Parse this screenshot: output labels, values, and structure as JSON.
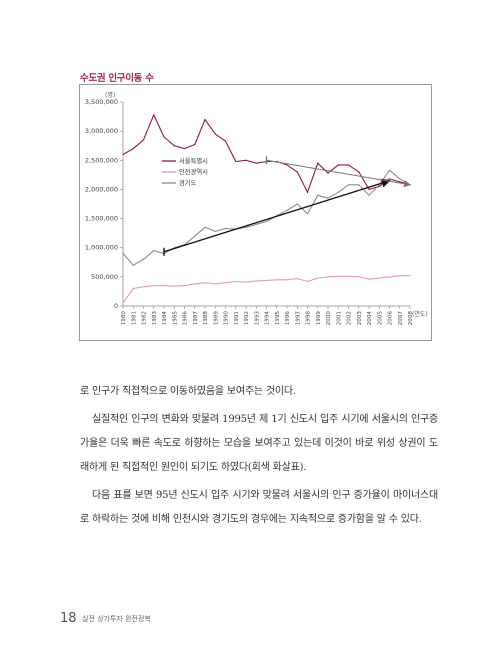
{
  "chart_data": {
    "type": "line",
    "title": "수도권 인구이동 수",
    "y_unit": "(명)",
    "x_unit": "(연도)",
    "ylim": [
      0,
      3500000
    ],
    "yticks": [
      0,
      500000,
      1000000,
      1500000,
      2000000,
      2500000,
      3000000,
      3500000
    ],
    "ytick_labels": [
      "0",
      "500,000",
      "1,000,000",
      "1,500,000",
      "2,000,000",
      "2,500,000",
      "3,000,000",
      "3,500,000"
    ],
    "x": [
      "1980",
      "1981",
      "1982",
      "1983",
      "1984",
      "1985",
      "1986",
      "1987",
      "1988",
      "1989",
      "1990",
      "1991",
      "1992",
      "1993",
      "1994",
      "1995",
      "1996",
      "1997",
      "1998",
      "1999",
      "2000",
      "2001",
      "2002",
      "2003",
      "2004",
      "2005",
      "2006",
      "2007",
      "2008"
    ],
    "series": [
      {
        "name": "서울특별시",
        "color": "#8b1a3c",
        "values": [
          2600000,
          2700000,
          2850000,
          3280000,
          2900000,
          2750000,
          2700000,
          2770000,
          3200000,
          2950000,
          2830000,
          2480000,
          2500000,
          2450000,
          2480000,
          2480000,
          2420000,
          2300000,
          1950000,
          2450000,
          2280000,
          2420000,
          2420000,
          2300000,
          2000000,
          2050000,
          2180000,
          2130000,
          2080000
        ]
      },
      {
        "name": "인천광역시",
        "color": "#e59bb4",
        "values": [
          50000,
          300000,
          330000,
          350000,
          350000,
          340000,
          350000,
          380000,
          400000,
          380000,
          400000,
          420000,
          410000,
          430000,
          440000,
          450000,
          450000,
          470000,
          420000,
          480000,
          500000,
          510000,
          510000,
          500000,
          460000,
          480000,
          500000,
          520000,
          520000
        ]
      },
      {
        "name": "경기도",
        "color": "#8c8c8c",
        "values": [
          900000,
          700000,
          800000,
          950000,
          900000,
          1000000,
          1050000,
          1200000,
          1350000,
          1280000,
          1330000,
          1320000,
          1350000,
          1400000,
          1450000,
          1550000,
          1640000,
          1750000,
          1580000,
          1900000,
          1850000,
          1950000,
          2080000,
          2080000,
          1900000,
          2080000,
          2330000,
          2180000,
          2080000
        ]
      }
    ],
    "arrows": [
      {
        "from": {
          "x": "1984",
          "y": 930000
        },
        "to": {
          "x": "2006",
          "y": 2150000
        }
      },
      {
        "from": {
          "x": "1994",
          "y": 2500000
        },
        "to": {
          "x": "2008",
          "y": 2080000
        }
      }
    ]
  },
  "body": {
    "p1": "로 인구가 직접적으로 이동하였음을 보여주는 것이다.",
    "p2": "실질적인 인구의 변화와 맞물려 1995년 제 1기 신도시 입주 시기에 서울시의 인구증가율은 더욱 빠른 속도로 하향하는 모습을 보여주고 있는데 이것이 바로 위성 상권이 도래하게 된 직접적인 원인이 되기도 하였다(회색 화살표).",
    "p3": "다음 표를 보면 95년 신도시 입주 시기와 맞물려 서울시의 인구 증가율이 마이너스대로 하락하는 것에 비해 인천시와 경기도의 경우에는 지속적으로 증가함을 알 수 있다."
  },
  "footer": {
    "page_number": "18",
    "book_title": "실전 상가투자 완전정복"
  }
}
